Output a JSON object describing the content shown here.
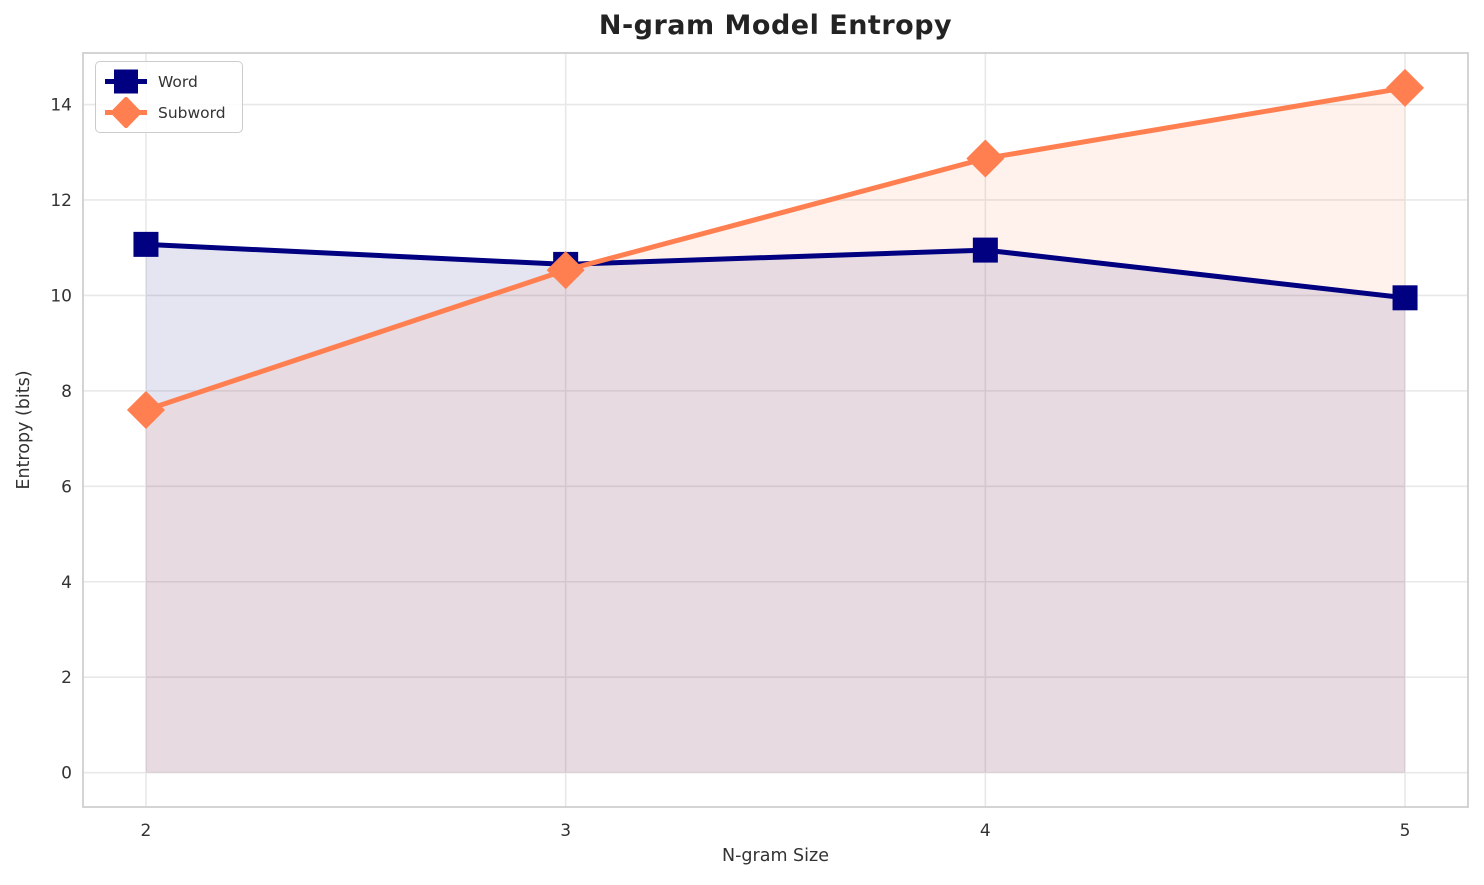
{
  "chart_data": {
    "type": "line",
    "title": "N-gram Model Entropy",
    "xlabel": "N-gram Size",
    "ylabel": "Entropy (bits)",
    "x": [
      2,
      3,
      4,
      5
    ],
    "series": [
      {
        "name": "Word",
        "values": [
          11.07,
          10.65,
          10.95,
          9.95
        ],
        "color": "#000080",
        "marker": "square",
        "fill_to_zero": true
      },
      {
        "name": "Subword",
        "values": [
          7.6,
          10.53,
          12.87,
          14.35
        ],
        "color": "#FF7F50",
        "marker": "diamond",
        "fill_to_zero": true
      }
    ],
    "x_ticks": [
      2,
      3,
      4,
      5
    ],
    "y_ticks": [
      0,
      2,
      4,
      6,
      8,
      10,
      12,
      14
    ],
    "xlim": [
      1.85,
      5.15
    ],
    "ylim": [
      -0.72,
      15.08
    ],
    "grid": true,
    "legend_position": "upper left",
    "fill_alpha": 0.1,
    "line_width": 5
  }
}
